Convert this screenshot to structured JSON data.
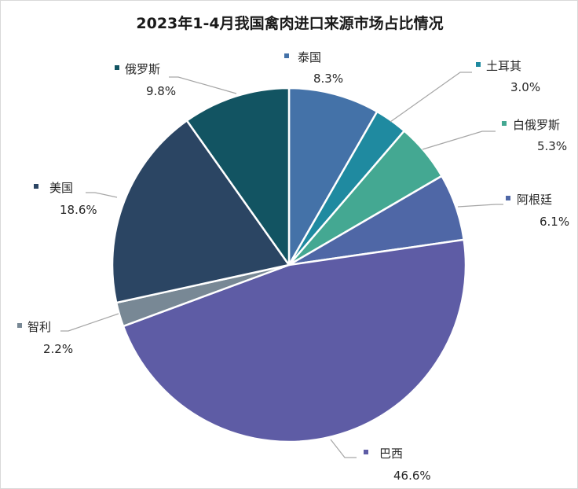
{
  "chart_data": {
    "type": "pie",
    "title": "2023年1-4月我国禽肉进口来源市场占比情况",
    "slices": [
      {
        "name": "泰国",
        "value": 8.3,
        "label": "8.3%",
        "color": "#4472a8"
      },
      {
        "name": "土耳其",
        "value": 3.0,
        "label": "3.0%",
        "color": "#1f8aa0"
      },
      {
        "name": "白俄罗斯",
        "value": 5.3,
        "label": "5.3%",
        "color": "#44a892"
      },
      {
        "name": "阿根廷",
        "value": 6.1,
        "label": "6.1%",
        "color": "#4f67a6"
      },
      {
        "name": "巴西",
        "value": 46.6,
        "label": "46.6%",
        "color": "#5e5ca5"
      },
      {
        "name": "智利",
        "value": 2.2,
        "label": "2.2%",
        "color": "#788895"
      },
      {
        "name": "美国",
        "value": 18.6,
        "label": "18.6%",
        "color": "#2b4563"
      },
      {
        "name": "俄罗斯",
        "value": 9.8,
        "label": "9.8%",
        "color": "#125462"
      }
    ],
    "legend": "none",
    "label_style": "outside labels with leader lines"
  }
}
